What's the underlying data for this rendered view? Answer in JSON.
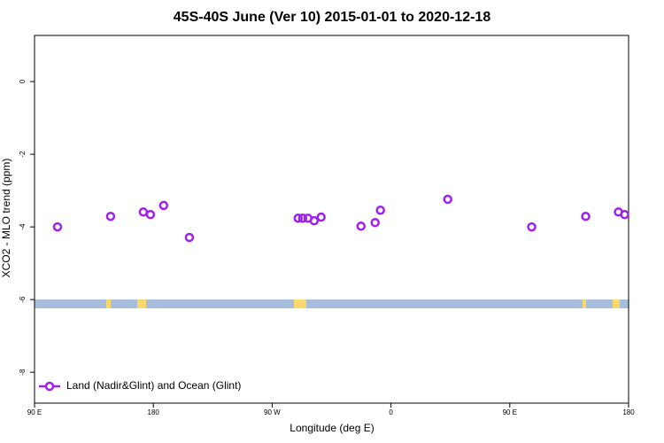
{
  "chart_data": {
    "type": "scatter",
    "title": "45S-40S June (Ver 10)   2015-01-01 to 2020-12-18",
    "x_label": "Longitude (deg E)",
    "y_label": "XCO2 - MLO trend (ppm)",
    "xlim": [
      90,
      540
    ],
    "ylim": [
      -8.85,
      1.27
    ],
    "xticks": [
      {
        "value": 90,
        "label": "90 E"
      },
      180,
      {
        "value": 270,
        "label": "90 W"
      },
      {
        "value": 360,
        "label": "0"
      },
      {
        "value": 450,
        "label": "90 E"
      },
      {
        "value": 540,
        "label": "180"
      }
    ],
    "yticks": [
      0,
      -2,
      -4,
      -6,
      -8
    ],
    "legend_position": "bottom-left",
    "series": [
      {
        "name": "Land (Nadir&Glint) and Ocean (Glint)",
        "color": "#a020f0",
        "x": [
          107.4,
          147.6,
          172.4,
          177.8,
          187.8,
          207.3,
          289.7,
          293.1,
          297.1,
          301.8,
          307.1,
          337.3,
          348.0,
          352.0,
          403.0,
          466.6,
          507.5,
          532.3,
          537.0
        ],
        "values": [
          -4.0,
          -3.71,
          -3.59,
          -3.66,
          -3.41,
          -4.29,
          -3.76,
          -3.76,
          -3.76,
          -3.83,
          -3.73,
          -3.98,
          -3.88,
          -3.54,
          -3.24,
          -4.0,
          -3.71,
          -3.59,
          -3.66
        ]
      }
    ]
  }
}
